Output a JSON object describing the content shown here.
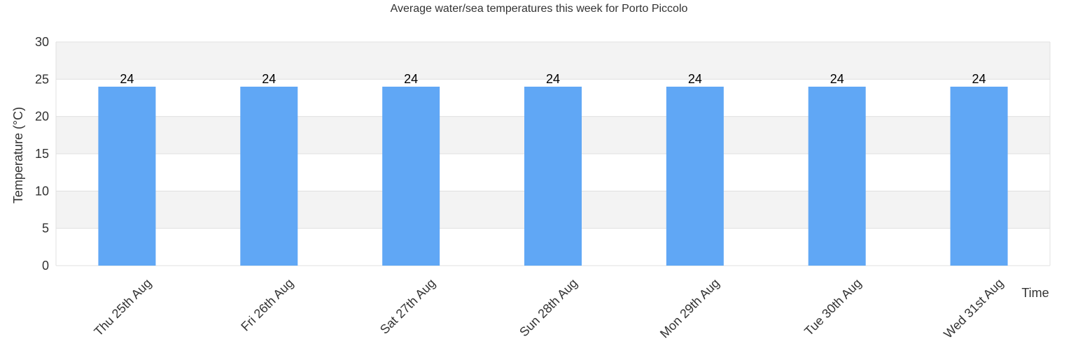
{
  "chart_data": {
    "type": "bar",
    "title": "Average water/sea temperatures this week for Porto Piccolo",
    "xlabel": "Time",
    "ylabel": "Temperature (°C)",
    "categories": [
      "Thu 25th Aug",
      "Fri 26th Aug",
      "Sat 27th Aug",
      "Sun 28th Aug",
      "Mon 29th Aug",
      "Tue 30th Aug",
      "Wed 31st Aug"
    ],
    "values": [
      24,
      24,
      24,
      24,
      24,
      24,
      24
    ],
    "ylim": [
      0,
      30
    ],
    "yticks": [
      0,
      5,
      10,
      15,
      20,
      25,
      30
    ],
    "data_labels": [
      "24",
      "24",
      "24",
      "24",
      "24",
      "24",
      "24"
    ],
    "grid": true,
    "colors": {
      "bar": "#60a7f5",
      "band": "#f3f3f3",
      "grid": "#e0e0e0"
    }
  }
}
